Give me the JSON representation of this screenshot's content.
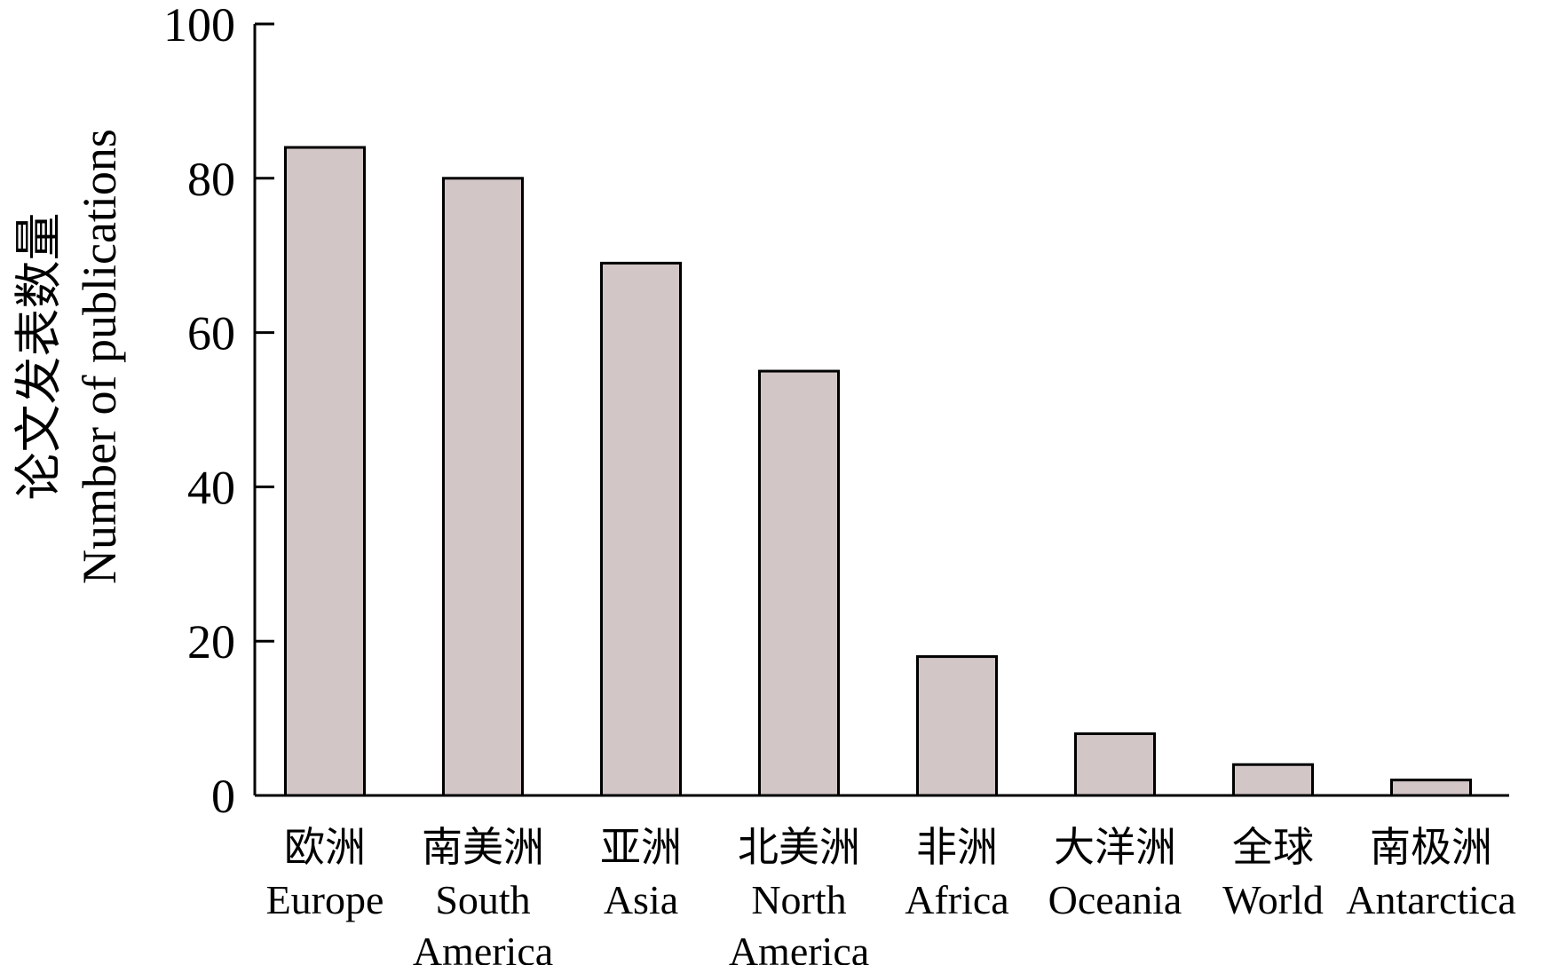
{
  "chart_data": {
    "type": "bar",
    "categories": [
      {
        "zh": "欧洲",
        "en": [
          "Europe"
        ]
      },
      {
        "zh": "南美洲",
        "en": [
          "South",
          "America"
        ]
      },
      {
        "zh": "亚洲",
        "en": [
          "Asia"
        ]
      },
      {
        "zh": "北美洲",
        "en": [
          "North",
          "America"
        ]
      },
      {
        "zh": "非洲",
        "en": [
          "Africa"
        ]
      },
      {
        "zh": "大洋洲",
        "en": [
          "Oceania"
        ]
      },
      {
        "zh": "全球",
        "en": [
          "World"
        ]
      },
      {
        "zh": "南极洲",
        "en": [
          "Antarctica"
        ]
      }
    ],
    "values": [
      84,
      80,
      69,
      55,
      18,
      8,
      4,
      2
    ],
    "ylabel_zh": "论文发表数量",
    "ylabel_en": "Number of publications",
    "ylim": [
      0,
      100
    ],
    "yticks": [
      0,
      20,
      40,
      60,
      80,
      100
    ],
    "bar_color": "#d3c6c6",
    "grid": false
  }
}
